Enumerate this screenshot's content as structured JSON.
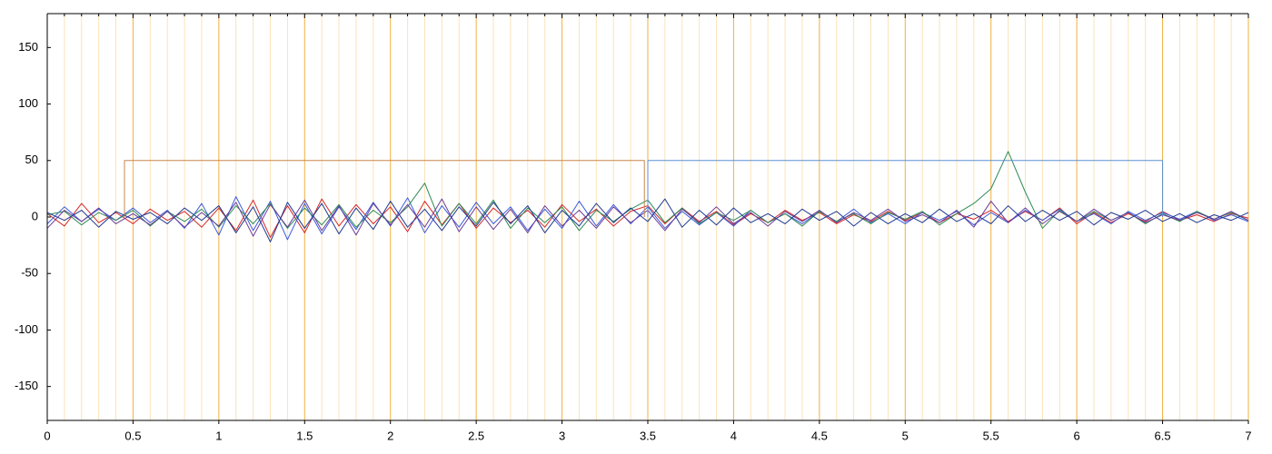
{
  "chart_data": {
    "type": "line",
    "xlim": [
      0,
      7
    ],
    "ylim": [
      -180,
      180
    ],
    "xticks": [
      0,
      0.5,
      1,
      1.5,
      2,
      2.5,
      3,
      3.5,
      4,
      4.5,
      5,
      5.5,
      6,
      6.5,
      7
    ],
    "xminorticks": [
      0.1,
      0.2,
      0.3,
      0.4,
      0.6,
      0.7,
      0.8,
      0.9,
      1.1,
      1.2,
      1.3,
      1.4,
      1.6,
      1.7,
      1.8,
      1.9,
      2.1,
      2.2,
      2.3,
      2.4,
      2.6,
      2.7,
      2.8,
      2.9,
      3.1,
      3.2,
      3.3,
      3.4,
      3.6,
      3.7,
      3.8,
      3.9,
      4.1,
      4.2,
      4.3,
      4.4,
      4.6,
      4.7,
      4.8,
      4.9,
      5.1,
      5.2,
      5.3,
      5.4,
      5.6,
      5.7,
      5.8,
      5.9,
      6.1,
      6.2,
      6.3,
      6.4,
      6.6,
      6.7,
      6.8,
      6.9
    ],
    "yticks": [
      -150,
      -100,
      -50,
      0,
      50,
      100,
      150
    ],
    "grid": true,
    "grid_color": "#f0b040",
    "minor_grid_color": "#fbe3b8",
    "x": [
      0,
      0.1,
      0.2,
      0.3,
      0.4,
      0.5,
      0.6,
      0.7,
      0.8,
      0.9,
      1,
      1.1,
      1.2,
      1.3,
      1.4,
      1.5,
      1.6,
      1.7,
      1.8,
      1.9,
      2,
      2.1,
      2.2,
      2.3,
      2.4,
      2.5,
      2.6,
      2.7,
      2.8,
      2.9,
      3,
      3.1,
      3.2,
      3.3,
      3.4,
      3.5,
      3.6,
      3.7,
      3.8,
      3.9,
      4,
      4.1,
      4.2,
      4.3,
      4.4,
      4.5,
      4.6,
      4.7,
      4.8,
      4.9,
      5,
      5.1,
      5.2,
      5.3,
      5.4,
      5.5,
      5.6,
      5.7,
      5.8,
      5.9,
      6,
      6.1,
      6.2,
      6.3,
      6.4,
      6.5,
      6.6,
      6.7,
      6.8,
      6.9,
      7
    ],
    "series": [
      {
        "color": "#d62728",
        "values": [
          3,
          -8,
          12,
          -5,
          4,
          -6,
          7,
          -3,
          5,
          -9,
          8,
          -12,
          15,
          -18,
          10,
          -14,
          16,
          -8,
          11,
          -6,
          9,
          -13,
          14,
          -7,
          12,
          -10,
          8,
          -5,
          6,
          -9,
          11,
          -4,
          7,
          -8,
          5,
          10,
          -6,
          8,
          -4,
          5,
          -7,
          3,
          -5,
          6,
          -3,
          4,
          -6,
          2,
          -4,
          5,
          -3,
          4,
          -5,
          3,
          -2,
          6,
          -4,
          5,
          -3,
          8,
          -6,
          4,
          -5,
          3,
          -4,
          5,
          -3,
          2,
          -4,
          3,
          -1
        ]
      },
      {
        "color": "#3b5bdb",
        "values": [
          -6,
          9,
          -4,
          7,
          -3,
          8,
          -5,
          6,
          -10,
          12,
          -16,
          18,
          -12,
          14,
          -20,
          12,
          -15,
          9,
          -11,
          13,
          -8,
          17,
          -14,
          10,
          -9,
          13,
          -6,
          9,
          -12,
          7,
          -10,
          14,
          -8,
          11,
          -6,
          9,
          -10,
          5,
          -7,
          4,
          -8,
          6,
          -5,
          3,
          -6,
          5,
          -4,
          7,
          -5,
          3,
          -6,
          4,
          -3,
          5,
          -7,
          4,
          -5,
          6,
          -3,
          7,
          -4,
          3,
          -6,
          5,
          -3,
          4,
          -2,
          5,
          -3,
          2,
          -4
        ]
      },
      {
        "color": "#2e8b57",
        "values": [
          2,
          5,
          -7,
          4,
          -3,
          6,
          -8,
          5,
          -4,
          7,
          -9,
          10,
          -6,
          12,
          -10,
          8,
          -7,
          11,
          -9,
          6,
          -5,
          9,
          30,
          -8,
          12,
          -6,
          15,
          -10,
          8,
          -5,
          9,
          -12,
          6,
          -4,
          7,
          15,
          -5,
          8,
          -6,
          4,
          -3,
          6,
          -5,
          3,
          -8,
          5,
          -4,
          3,
          -6,
          4,
          -2,
          5,
          -7,
          3,
          12,
          25,
          58,
          22,
          -10,
          6,
          -4,
          5,
          -3,
          4,
          -6,
          3,
          -4,
          5,
          -2,
          4,
          -3
        ]
      },
      {
        "color": "#6a3d9a",
        "values": [
          -10,
          6,
          -4,
          8,
          -6,
          3,
          -7,
          5,
          -9,
          4,
          -8,
          13,
          -17,
          11,
          -9,
          15,
          -12,
          10,
          -16,
          12,
          -7,
          11,
          -9,
          16,
          -13,
          9,
          -11,
          7,
          -14,
          10,
          -8,
          6,
          -10,
          9,
          -5,
          6,
          -12,
          7,
          -5,
          9,
          -6,
          4,
          -8,
          5,
          -4,
          6,
          -5,
          4,
          -3,
          7,
          -4,
          2,
          -5,
          6,
          -9,
          14,
          -5,
          8,
          -6,
          5,
          -4,
          7,
          -3,
          4,
          -5,
          2,
          -3,
          4,
          -2,
          5,
          -3
        ]
      },
      {
        "color": "#1f3a93",
        "values": [
          4,
          -3,
          6,
          -9,
          5,
          -2,
          4,
          -6,
          8,
          -3,
          10,
          -14,
          9,
          -22,
          13,
          -10,
          12,
          -15,
          8,
          -11,
          14,
          -9,
          7,
          -12,
          9,
          -8,
          13,
          -6,
          10,
          -14,
          6,
          -8,
          12,
          -5,
          8,
          -4,
          16,
          -9,
          6,
          -7,
          8,
          -5,
          3,
          -6,
          7,
          -3,
          5,
          -8,
          4,
          -6,
          3,
          -5,
          7,
          -4,
          3,
          -6,
          10,
          -4,
          6,
          -3,
          5,
          -7,
          4,
          -2,
          6,
          -4,
          3,
          -5,
          2,
          -3,
          4
        ]
      },
      {
        "color": "#c8864a",
        "x": [
          0.45,
          0.45,
          3.48,
          3.48
        ],
        "values": [
          0,
          50,
          50,
          0
        ]
      },
      {
        "color": "#5b8fd0",
        "x": [
          3.5,
          3.5,
          6.5,
          6.5
        ],
        "values": [
          0,
          50,
          50,
          0
        ]
      }
    ]
  }
}
